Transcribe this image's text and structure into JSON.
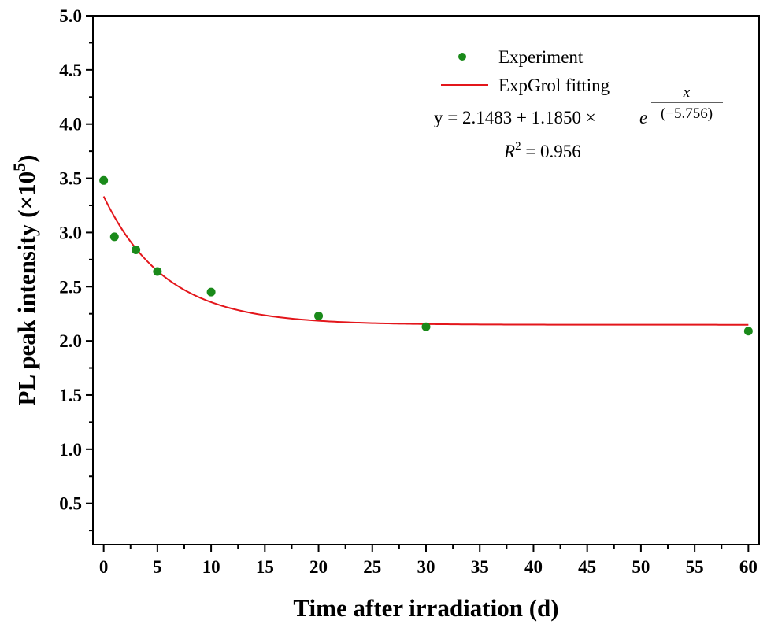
{
  "chart_data": {
    "type": "scatter",
    "xlabel": "Time after irradiation (d)",
    "ylabel_main": "PL peak intensity (×10",
    "ylabel_sup": "5",
    "ylabel_close": ")",
    "xlim": [
      -1,
      61
    ],
    "ylim": [
      0.12,
      5.0
    ],
    "xticks": [
      0,
      5,
      10,
      15,
      20,
      25,
      30,
      35,
      40,
      45,
      50,
      55,
      60
    ],
    "xtick_labels": [
      "0",
      "5",
      "10",
      "15",
      "20",
      "25",
      "30",
      "35",
      "40",
      "45",
      "50",
      "55",
      "60"
    ],
    "yticks": [
      0.5,
      1.0,
      1.5,
      2.0,
      2.5,
      3.0,
      3.5,
      4.0,
      4.5,
      5.0
    ],
    "ytick_labels": [
      "0.5",
      "1.0",
      "1.5",
      "2.0",
      "2.5",
      "3.0",
      "3.5",
      "4.0",
      "4.5",
      "5.0"
    ],
    "grid": false,
    "legend_position": "top-right",
    "series": [
      {
        "name": "Experiment",
        "kind": "scatter",
        "color": "#1a8a1a",
        "x": [
          0,
          1,
          3,
          5,
          10,
          20,
          30,
          60
        ],
        "y": [
          3.48,
          2.96,
          2.84,
          2.64,
          2.45,
          2.23,
          2.13,
          2.09
        ]
      },
      {
        "name": "ExpGrol fitting",
        "kind": "line",
        "color": "#e3161b",
        "model": "exponential_decay",
        "y0": 2.1483,
        "A": 1.185,
        "t": 5.756,
        "x_range": [
          0,
          60
        ]
      }
    ],
    "annotations": {
      "eq_prefix": "y = 2.1483 + 1.1850 ×",
      "eq_base": "e",
      "eq_num": "x",
      "eq_den": "(−5.756)",
      "r2_prefix": "R",
      "r2_sup": "2",
      "r2_value": " = 0.956"
    }
  }
}
